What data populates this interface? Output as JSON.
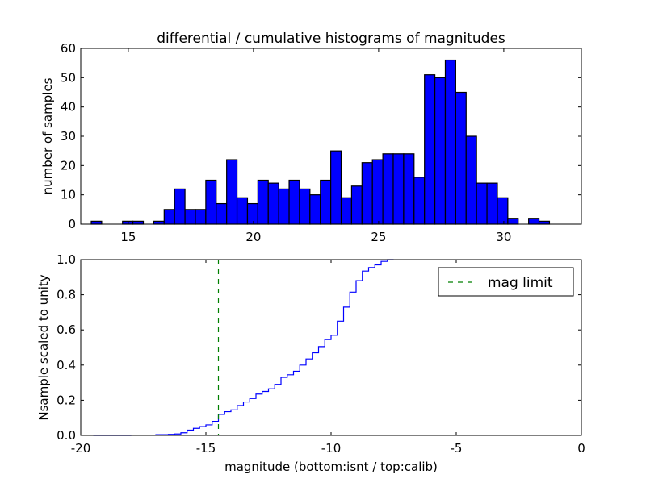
{
  "chart_data": [
    {
      "type": "bar",
      "title": "differential / cumulative histograms of magnitudes",
      "xlabel": "",
      "ylabel": "number of samples",
      "xlim": [
        13.1,
        33.1
      ],
      "ylim": [
        0,
        60
      ],
      "xticks": [
        15,
        20,
        25,
        30
      ],
      "yticks": [
        0,
        10,
        20,
        30,
        40,
        50,
        60
      ],
      "bin_start": 13.52,
      "bin_width": 0.416,
      "values": [
        1,
        0,
        0,
        1,
        1,
        0,
        1,
        5,
        12,
        5,
        5,
        15,
        7,
        22,
        9,
        7,
        15,
        14,
        12,
        15,
        12,
        10,
        15,
        25,
        9,
        13,
        21,
        22,
        24,
        24,
        24,
        16,
        51,
        50,
        56,
        45,
        30,
        14,
        14,
        9,
        2,
        0,
        2,
        1
      ],
      "color": "#0000ff"
    },
    {
      "type": "line",
      "step": true,
      "xlabel": "magnitude (bottom:isnt / top:calib)",
      "ylabel": "Nsample scaled to unity",
      "xlim": [
        -20,
        0
      ],
      "ylim": [
        0,
        1.0
      ],
      "xticks": [
        -20,
        -15,
        -10,
        -5,
        0
      ],
      "yticks": [
        "0.0",
        "0.2",
        "0.4",
        "0.6",
        "0.8",
        "1.0"
      ],
      "x": [
        -19.5,
        -18,
        -17,
        -16.5,
        -16.25,
        -16,
        -15.75,
        -15.5,
        -15.25,
        -15,
        -14.75,
        -14.5,
        -14.25,
        -14,
        -13.75,
        -13.5,
        -13.25,
        -13,
        -12.75,
        -12.5,
        -12.25,
        -12,
        -11.75,
        -11.5,
        -11.25,
        -11,
        -10.75,
        -10.5,
        -10.25,
        -10,
        -9.75,
        -9.5,
        -9.25,
        -9,
        -8.75,
        -8.5,
        -8.25,
        -8,
        -7.75,
        -7.5
      ],
      "y": [
        0,
        0.002,
        0.004,
        0.006,
        0.008,
        0.015,
        0.03,
        0.04,
        0.05,
        0.06,
        0.08,
        0.12,
        0.135,
        0.145,
        0.17,
        0.19,
        0.21,
        0.235,
        0.25,
        0.265,
        0.29,
        0.33,
        0.345,
        0.365,
        0.4,
        0.435,
        0.47,
        0.505,
        0.545,
        0.57,
        0.65,
        0.73,
        0.815,
        0.88,
        0.935,
        0.955,
        0.97,
        0.99,
        1.0,
        1.0
      ],
      "color": "#0000ff",
      "vline": {
        "x": -14.5,
        "label": "mag limit",
        "color": "#007f00",
        "style": "dashed"
      },
      "legend": {
        "entries": [
          "mag limit"
        ],
        "placement": "top-right"
      }
    }
  ]
}
